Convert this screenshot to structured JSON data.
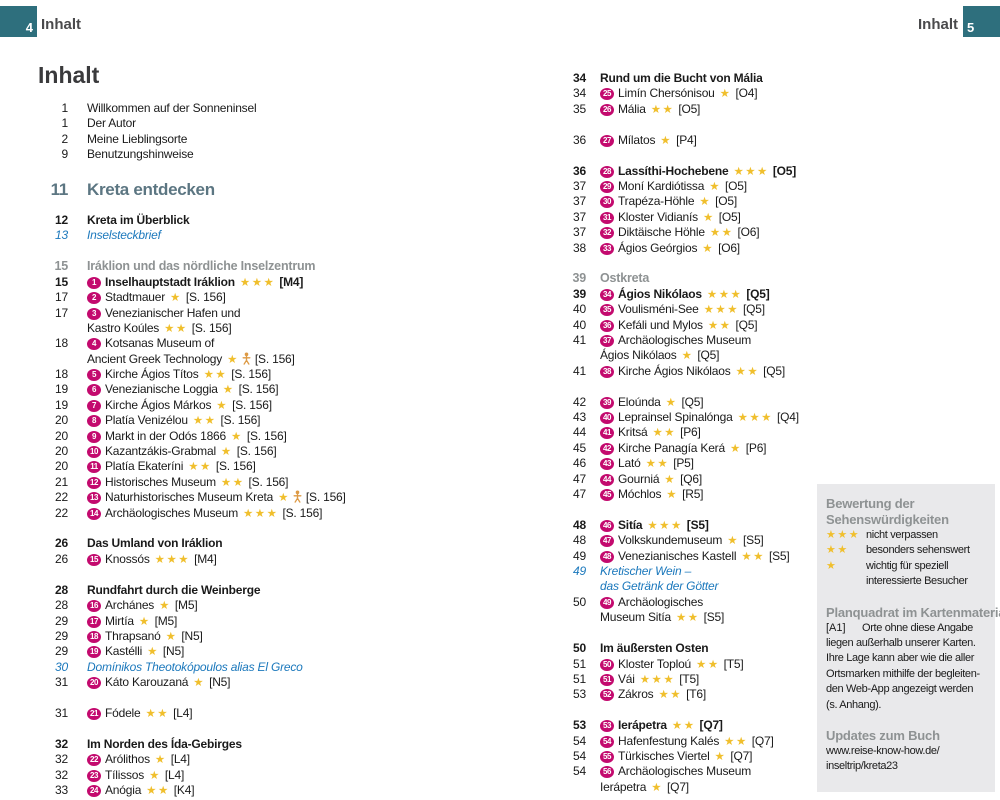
{
  "page_header": {
    "left_page": "4",
    "left_label": "Inhalt",
    "right_page": "5",
    "right_label": "Inhalt"
  },
  "title": "Inhalt",
  "colors": {
    "teal": "#2e6f7d",
    "badge_magenta": "#c30a6e",
    "star_gold": "#f0bf2d",
    "link_blue": "#1b78bc",
    "heading_gray": "#8e9293",
    "chapter_teal": "#5c7682",
    "sidebar_bg": "#e9e9eb"
  },
  "left_column": [
    {
      "t": "e",
      "p": "1",
      "x": "Willkommen auf der Sonneninsel"
    },
    {
      "t": "e",
      "p": "1",
      "x": "Der Autor"
    },
    {
      "t": "e",
      "p": "2",
      "x": "Meine Lieblingsorte"
    },
    {
      "t": "e",
      "p": "9",
      "x": "Benutzungshinweise"
    },
    {
      "t": "g",
      "h": 14
    },
    {
      "t": "H",
      "p": "11",
      "x": "Kreta entdecken"
    },
    {
      "t": "g",
      "h": 10
    },
    {
      "t": "s",
      "p": "12",
      "x": "Kreta im Überblick"
    },
    {
      "t": "i",
      "p": "13",
      "x": "Inselsteckbrief"
    },
    {
      "t": "g",
      "h": 16
    },
    {
      "t": "h",
      "p": "15",
      "x": "Iráklion und das nördliche Inselzentrum"
    },
    {
      "t": "e",
      "p": "15",
      "b": 1,
      "bold": 1,
      "x": "Inselhauptstadt Iráklion",
      "s": 3,
      "f": "[M4]"
    },
    {
      "t": "e",
      "p": "17",
      "b": 2,
      "x": "Stadtmauer",
      "s": 1,
      "f": "[S. 156]"
    },
    {
      "t": "e",
      "p": "17",
      "b": 3,
      "x": "Venezianischer Hafen und"
    },
    {
      "t": "c",
      "x": "Kastro Koúles",
      "s": 2,
      "f": "[S. 156]"
    },
    {
      "t": "e",
      "p": "18",
      "b": 4,
      "x": "Kotsanas Museum of"
    },
    {
      "t": "c",
      "x": "Ancient Greek Technology",
      "s": 1,
      "person": 1,
      "f": "[S. 156]"
    },
    {
      "t": "e",
      "p": "18",
      "b": 5,
      "x": "Kirche Ágios Títos",
      "s": 2,
      "f": "[S. 156]"
    },
    {
      "t": "e",
      "p": "19",
      "b": 6,
      "x": "Venezianische Loggia",
      "s": 1,
      "f": "[S. 156]"
    },
    {
      "t": "e",
      "p": "19",
      "b": 7,
      "x": "Kirche Ágios Márkos",
      "s": 1,
      "f": "[S. 156]"
    },
    {
      "t": "e",
      "p": "20",
      "b": 8,
      "x": "Platía Venizélou",
      "s": 2,
      "f": "[S. 156]"
    },
    {
      "t": "e",
      "p": "20",
      "b": 9,
      "x": "Markt in der Odós 1866",
      "s": 1,
      "f": "[S. 156]"
    },
    {
      "t": "e",
      "p": "20",
      "b": 10,
      "x": "Kazantzákis-Grabmal",
      "s": 1,
      "f": "[S. 156]"
    },
    {
      "t": "e",
      "p": "20",
      "b": 11,
      "x": "Platía Ekateríni",
      "s": 2,
      "f": "[S. 156]"
    },
    {
      "t": "e",
      "p": "21",
      "b": 12,
      "x": "Historisches Museum",
      "s": 2,
      "f": "[S. 156]"
    },
    {
      "t": "e",
      "p": "22",
      "b": 13,
      "x": "Naturhistorisches Museum Kreta",
      "s": 1,
      "person": 1,
      "f": "[S. 156]"
    },
    {
      "t": "e",
      "p": "22",
      "b": 14,
      "x": "Archäologisches Museum",
      "s": 3,
      "f": "[S. 156]"
    },
    {
      "t": "g"
    },
    {
      "t": "s",
      "p": "26",
      "x": "Das Umland von Iráklion"
    },
    {
      "t": "e",
      "p": "26",
      "b": 15,
      "x": "Knossós",
      "s": 3,
      "f": "[M4]"
    },
    {
      "t": "g"
    },
    {
      "t": "s",
      "p": "28",
      "x": "Rundfahrt durch die Weinberge"
    },
    {
      "t": "e",
      "p": "28",
      "b": 16,
      "x": "Archánes",
      "s": 1,
      "f": "[M5]"
    },
    {
      "t": "e",
      "p": "29",
      "b": 17,
      "x": "Mirtía",
      "s": 1,
      "f": "[M5]"
    },
    {
      "t": "e",
      "p": "29",
      "b": 18,
      "x": "Thrapsanó",
      "s": 1,
      "f": "[N5]"
    },
    {
      "t": "e",
      "p": "29",
      "b": 19,
      "x": "Kastélli",
      "s": 1,
      "f": "[N5]"
    },
    {
      "t": "i",
      "p": "30",
      "x": "Domínikos Theotokópoulos alias El Greco"
    },
    {
      "t": "e",
      "p": "31",
      "b": 20,
      "x": "Káto Karouzaná",
      "s": 1,
      "f": "[N5]"
    },
    {
      "t": "g"
    },
    {
      "t": "e",
      "p": "31",
      "b": 21,
      "x": "Fódele",
      "s": 2,
      "f": "[L4]"
    },
    {
      "t": "g"
    },
    {
      "t": "s",
      "p": "32",
      "x": "Im Norden des Ída-Gebirges"
    },
    {
      "t": "e",
      "p": "32",
      "b": 22,
      "x": "Arólithos",
      "s": 1,
      "f": "[L4]"
    },
    {
      "t": "e",
      "p": "32",
      "b": 23,
      "x": "Tílissos",
      "s": 1,
      "f": "[L4]"
    },
    {
      "t": "e",
      "p": "33",
      "b": 24,
      "x": "Anógia",
      "s": 2,
      "f": "[K4]"
    }
  ],
  "right_column": [
    {
      "t": "s",
      "p": "34",
      "x": "Rund um die Bucht von Mália"
    },
    {
      "t": "e",
      "p": "34",
      "b": 25,
      "x": "Limín Chersónisou",
      "s": 1,
      "f": "[O4]"
    },
    {
      "t": "e",
      "p": "35",
      "b": 26,
      "x": "Mália",
      "s": 2,
      "f": "[O5]"
    },
    {
      "t": "g"
    },
    {
      "t": "e",
      "p": "36",
      "b": 27,
      "x": "Mílatos",
      "s": 1,
      "f": "[P4]"
    },
    {
      "t": "g"
    },
    {
      "t": "e",
      "p": "36",
      "b": 28,
      "bold": 1,
      "x": "Lassíthi-Hochebene",
      "s": 3,
      "f": "[O5]"
    },
    {
      "t": "e",
      "p": "37",
      "b": 29,
      "x": "Moní Kardiótissa",
      "s": 1,
      "f": "[O5]"
    },
    {
      "t": "e",
      "p": "37",
      "b": 30,
      "x": "Trapéza-Höhle",
      "s": 1,
      "f": "[O5]"
    },
    {
      "t": "e",
      "p": "37",
      "b": 31,
      "x": "Kloster Vidianís",
      "s": 1,
      "f": "[O5]"
    },
    {
      "t": "e",
      "p": "37",
      "b": 32,
      "x": "Diktäische Höhle",
      "s": 2,
      "f": "[O6]"
    },
    {
      "t": "e",
      "p": "38",
      "b": 33,
      "x": "Ágios Geórgios",
      "s": 1,
      "f": "[O6]"
    },
    {
      "t": "g"
    },
    {
      "t": "h",
      "p": "39",
      "x": "Ostkreta"
    },
    {
      "t": "e",
      "p": "39",
      "b": 34,
      "bold": 1,
      "x": "Ágios Nikólaos",
      "s": 3,
      "f": "[Q5]"
    },
    {
      "t": "e",
      "p": "40",
      "b": 35,
      "x": "Voulisméni-See",
      "s": 3,
      "f": "[Q5]"
    },
    {
      "t": "e",
      "p": "40",
      "b": 36,
      "x": "Kefáli und Mylos",
      "s": 2,
      "f": "[Q5]"
    },
    {
      "t": "e",
      "p": "41",
      "b": 37,
      "x": "Archäologisches Museum"
    },
    {
      "t": "c",
      "x": "Ágios Nikólaos",
      "s": 1,
      "f": "[Q5]"
    },
    {
      "t": "e",
      "p": "41",
      "b": 38,
      "x": "Kirche Ágios Nikólaos",
      "s": 2,
      "f": "[Q5]"
    },
    {
      "t": "g"
    },
    {
      "t": "e",
      "p": "42",
      "b": 39,
      "x": "Eloúnda",
      "s": 1,
      "f": "[Q5]"
    },
    {
      "t": "e",
      "p": "43",
      "b": 40,
      "x": "Leprainsel Spinalónga",
      "s": 3,
      "f": "[Q4]"
    },
    {
      "t": "e",
      "p": "44",
      "b": 41,
      "x": "Kritsá",
      "s": 2,
      "f": "[P6]"
    },
    {
      "t": "e",
      "p": "45",
      "b": 42,
      "x": "Kirche Panagía Kerá",
      "s": 1,
      "f": "[P6]"
    },
    {
      "t": "e",
      "p": "46",
      "b": 43,
      "x": "Lató",
      "s": 2,
      "f": "[P5]"
    },
    {
      "t": "e",
      "p": "47",
      "b": 44,
      "x": "Gourniá",
      "s": 1,
      "f": "[Q6]"
    },
    {
      "t": "e",
      "p": "47",
      "b": 45,
      "x": "Móchlos",
      "s": 1,
      "f": "[R5]"
    },
    {
      "t": "g"
    },
    {
      "t": "e",
      "p": "48",
      "b": 46,
      "bold": 1,
      "x": "Sitía",
      "s": 3,
      "f": "[S5]"
    },
    {
      "t": "e",
      "p": "48",
      "b": 47,
      "x": "Volkskundemuseum",
      "s": 1,
      "f": "[S5]"
    },
    {
      "t": "e",
      "p": "49",
      "b": 48,
      "x": "Venezianisches Kastell",
      "s": 2,
      "f": "[S5]"
    },
    {
      "t": "i",
      "p": "49",
      "x": "Kretischer Wein –"
    },
    {
      "t": "ic",
      "x": "das Getränk der Götter"
    },
    {
      "t": "e",
      "p": "50",
      "b": 49,
      "x": "Archäologisches"
    },
    {
      "t": "c",
      "x": "Museum Sitía",
      "s": 2,
      "f": "[S5]"
    },
    {
      "t": "g"
    },
    {
      "t": "s",
      "p": "50",
      "x": "Im äußersten Osten"
    },
    {
      "t": "e",
      "p": "51",
      "b": 50,
      "x": "Kloster Toploú",
      "s": 2,
      "f": "[T5]"
    },
    {
      "t": "e",
      "p": "51",
      "b": 51,
      "x": "Vái",
      "s": 3,
      "f": "[T5]"
    },
    {
      "t": "e",
      "p": "53",
      "b": 52,
      "x": "Zákros",
      "s": 2,
      "f": "[T6]"
    },
    {
      "t": "g"
    },
    {
      "t": "e",
      "p": "53",
      "b": 53,
      "bold": 1,
      "x": "Ierápetra",
      "s": 2,
      "f": "[Q7]"
    },
    {
      "t": "e",
      "p": "54",
      "b": 54,
      "x": "Hafenfestung Kalés",
      "s": 2,
      "f": "[Q7]"
    },
    {
      "t": "e",
      "p": "54",
      "b": 55,
      "x": "Türkisches Viertel",
      "s": 1,
      "f": "[Q7]"
    },
    {
      "t": "e",
      "p": "54",
      "b": 56,
      "x": "Archäologisches Museum"
    },
    {
      "t": "c",
      "x": "Ierápetra",
      "s": 1,
      "f": "[Q7]"
    }
  ],
  "sidebar": {
    "rating_title_lines": [
      "Bewertung der",
      "Sehenswürdigkeiten"
    ],
    "ratings": [
      {
        "stars": 3,
        "lines": [
          "nicht verpassen"
        ]
      },
      {
        "stars": 2,
        "lines": [
          "besonders sehenswert"
        ]
      },
      {
        "stars": 1,
        "lines": [
          "wichtig für speziell",
          "interessierte Besucher"
        ]
      }
    ],
    "grid_title": "Planquadrat im Kartenmaterial",
    "grid_tag": "[A1]",
    "grid_first_line": "Orte ohne diese Angabe",
    "grid_lines": [
      "liegen außerhalb unserer Karten.",
      "Ihre Lage kann aber wie die aller",
      "Ortsmarken mithilfe der begleiten-",
      "den Web-App angezeigt werden",
      "(s. Anhang)."
    ],
    "updates_title": "Updates zum Buch",
    "updates_lines": [
      "www.reise-know-how.de/",
      "inseltrip/kreta23"
    ]
  }
}
